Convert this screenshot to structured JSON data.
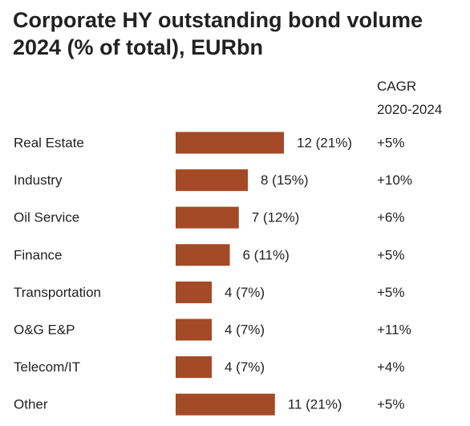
{
  "title_line1": "Corporate HY outstanding bond volume",
  "title_line2": "2024 (% of total), EURbn",
  "cagr_header_line1": "CAGR",
  "cagr_header_line2": "2020-2024",
  "bar_color": "#A44A26",
  "chart_data": {
    "type": "bar",
    "orientation": "horizontal",
    "title": "Corporate HY outstanding bond volume 2024 (% of total), EURbn",
    "categories": [
      "Real Estate",
      "Industry",
      "Oil Service",
      "Finance",
      "Transportation",
      "O&G E&P",
      "Telecom/IT",
      "Other"
    ],
    "values": [
      12,
      8,
      7,
      6,
      4,
      4,
      4,
      11
    ],
    "data_labels": [
      "12 (21%)",
      "8 (15%)",
      "7 (12%)",
      "6 (11%)",
      "4 (7%)",
      "4 (7%)",
      "4 (7%)",
      "11 (21%)"
    ],
    "cagr_2020_2024": [
      "+5%",
      "+10%",
      "+6%",
      "+5%",
      "+5%",
      "+11%",
      "+4%",
      "+5%"
    ],
    "grid": false,
    "legend": "none"
  }
}
